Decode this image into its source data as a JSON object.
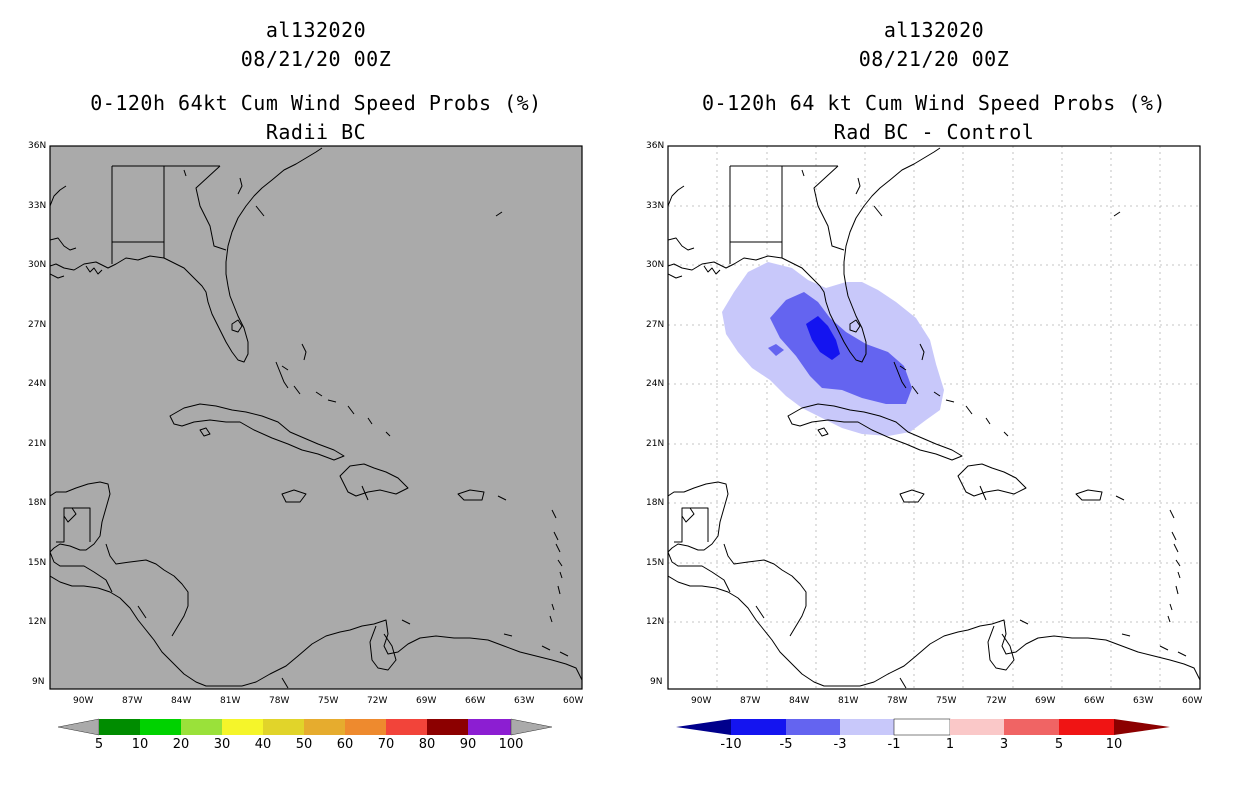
{
  "left": {
    "storm": "al132020",
    "date": "08/21/20 00Z",
    "product": "0-120h 64kt Cum Wind Speed Probs (%)",
    "subtitle": "Radii BC",
    "colorbar": {
      "labels": [
        "5",
        "10",
        "20",
        "30",
        "40",
        "50",
        "60",
        "70",
        "80",
        "90",
        "100"
      ],
      "colors": [
        "#008c00",
        "#00d200",
        "#9ae13a",
        "#f5f52a",
        "#e1d42a",
        "#e6ac2e",
        "#ee8a2e",
        "#f2443a",
        "#8c0000",
        "#8c1ed2"
      ]
    }
  },
  "right": {
    "storm": "al132020",
    "date": "08/21/20 00Z",
    "product": "0-120h 64 kt Cum Wind Speed Probs (%)",
    "subtitle": "Rad BC - Control",
    "colorbar": {
      "labels": [
        "-10",
        "-5",
        "-3",
        "-1",
        "1",
        "3",
        "5",
        "10"
      ],
      "colors": [
        "#00008c",
        "#1414f0",
        "#6464f0",
        "#c8c8fa",
        "#ffffff",
        "#fac8c8",
        "#f06464",
        "#f01414",
        "#8c0000"
      ]
    }
  },
  "axes": {
    "lat_labels": [
      "36N",
      "33N",
      "30N",
      "27N",
      "24N",
      "21N",
      "18N",
      "15N",
      "12N",
      "9N"
    ],
    "lon_labels": [
      "90W",
      "87W",
      "84W",
      "81W",
      "78W",
      "75W",
      "72W",
      "69W",
      "66W",
      "63W",
      "60W"
    ]
  },
  "colors": {
    "left_background": "#aaaaaa",
    "grid": "#aaaaaa"
  }
}
